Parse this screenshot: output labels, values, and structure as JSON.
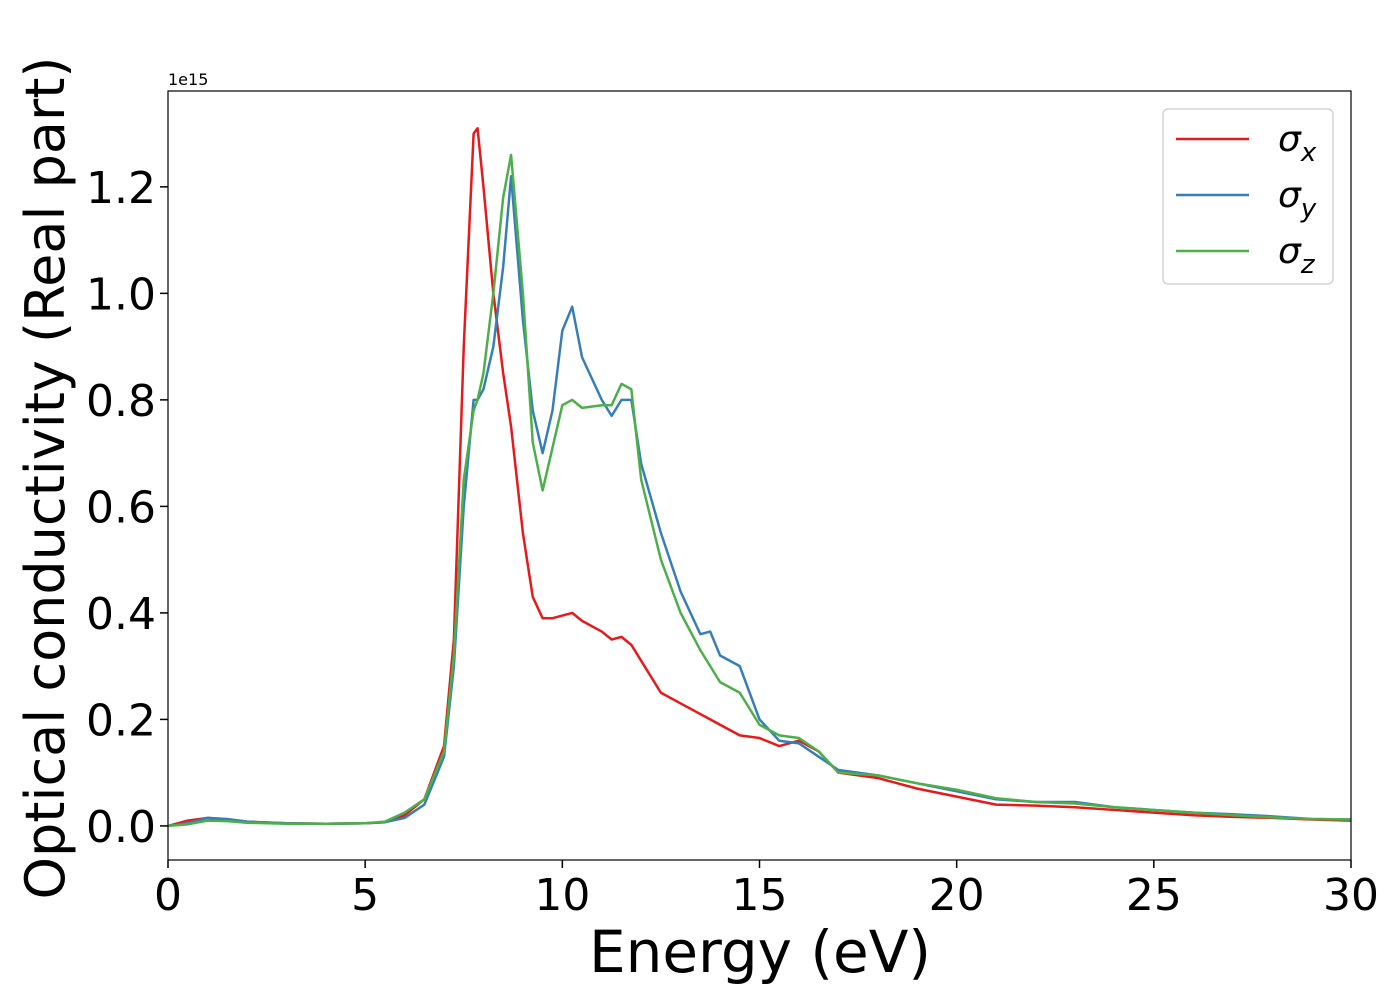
{
  "chart_data": {
    "type": "line",
    "x_label": "Energy (eV)",
    "y_label": "Optical conductivity (Real part)",
    "y_offset_label": "1e15",
    "x": [
      0,
      0.5,
      1,
      1.5,
      2,
      3,
      4,
      5,
      5.5,
      6,
      6.5,
      7,
      7.25,
      7.5,
      7.75,
      7.85,
      8,
      8.25,
      8.5,
      8.7,
      9,
      9.25,
      9.5,
      9.75,
      10,
      10.25,
      10.5,
      11,
      11.25,
      11.5,
      11.75,
      12,
      12.5,
      13,
      13.5,
      13.75,
      14,
      14.5,
      15,
      15.5,
      16,
      16.5,
      17,
      18,
      19,
      20,
      21,
      22,
      23,
      24,
      25,
      26,
      27,
      28,
      29,
      30
    ],
    "series": [
      {
        "name": "σx",
        "color": "#e41a1c",
        "values": [
          0,
          0.01,
          0.015,
          0.012,
          0.008,
          0.005,
          0.004,
          0.005,
          0.007,
          0.02,
          0.05,
          0.15,
          0.35,
          0.9,
          1.3,
          1.31,
          1.2,
          1.0,
          0.85,
          0.75,
          0.55,
          0.43,
          0.39,
          0.39,
          0.395,
          0.4,
          0.385,
          0.365,
          0.35,
          0.355,
          0.34,
          0.31,
          0.25,
          0.23,
          0.21,
          0.2,
          0.19,
          0.17,
          0.165,
          0.15,
          0.16,
          0.14,
          0.1,
          0.09,
          0.07,
          0.055,
          0.04,
          0.038,
          0.035,
          0.03,
          0.025,
          0.02,
          0.017,
          0.015,
          0.012,
          0.01
        ]
      },
      {
        "name": "σy",
        "color": "#377eb8",
        "values": [
          0,
          0.005,
          0.015,
          0.013,
          0.008,
          0.005,
          0.004,
          0.005,
          0.007,
          0.015,
          0.04,
          0.13,
          0.3,
          0.6,
          0.8,
          0.8,
          0.82,
          0.9,
          1.05,
          1.22,
          0.95,
          0.78,
          0.7,
          0.78,
          0.93,
          0.975,
          0.88,
          0.8,
          0.77,
          0.8,
          0.8,
          0.68,
          0.55,
          0.44,
          0.36,
          0.365,
          0.32,
          0.3,
          0.2,
          0.16,
          0.155,
          0.13,
          0.105,
          0.095,
          0.08,
          0.065,
          0.05,
          0.045,
          0.045,
          0.035,
          0.03,
          0.025,
          0.022,
          0.018,
          0.013,
          0.012
        ]
      },
      {
        "name": "σz",
        "color": "#4daf4a",
        "values": [
          0,
          0.003,
          0.01,
          0.009,
          0.006,
          0.004,
          0.004,
          0.005,
          0.008,
          0.025,
          0.05,
          0.14,
          0.32,
          0.65,
          0.78,
          0.8,
          0.85,
          1.0,
          1.18,
          1.26,
          1.0,
          0.72,
          0.63,
          0.71,
          0.79,
          0.8,
          0.785,
          0.79,
          0.79,
          0.83,
          0.82,
          0.65,
          0.5,
          0.4,
          0.33,
          0.3,
          0.27,
          0.25,
          0.19,
          0.17,
          0.165,
          0.14,
          0.1,
          0.095,
          0.08,
          0.068,
          0.052,
          0.045,
          0.042,
          0.035,
          0.03,
          0.025,
          0.02,
          0.016,
          0.013,
          0.012
        ]
      }
    ],
    "xlim": [
      0,
      30
    ],
    "xticks": [
      0,
      5,
      10,
      15,
      20,
      25,
      30
    ],
    "ylim": [
      -0.064,
      1.38
    ],
    "yticks": [
      {
        "value": 0,
        "label": "0.0"
      },
      0.2,
      0.4,
      0.6,
      0.8,
      {
        "value": 1,
        "label": "1.0"
      },
      1.2
    ],
    "legend": "upper right"
  }
}
